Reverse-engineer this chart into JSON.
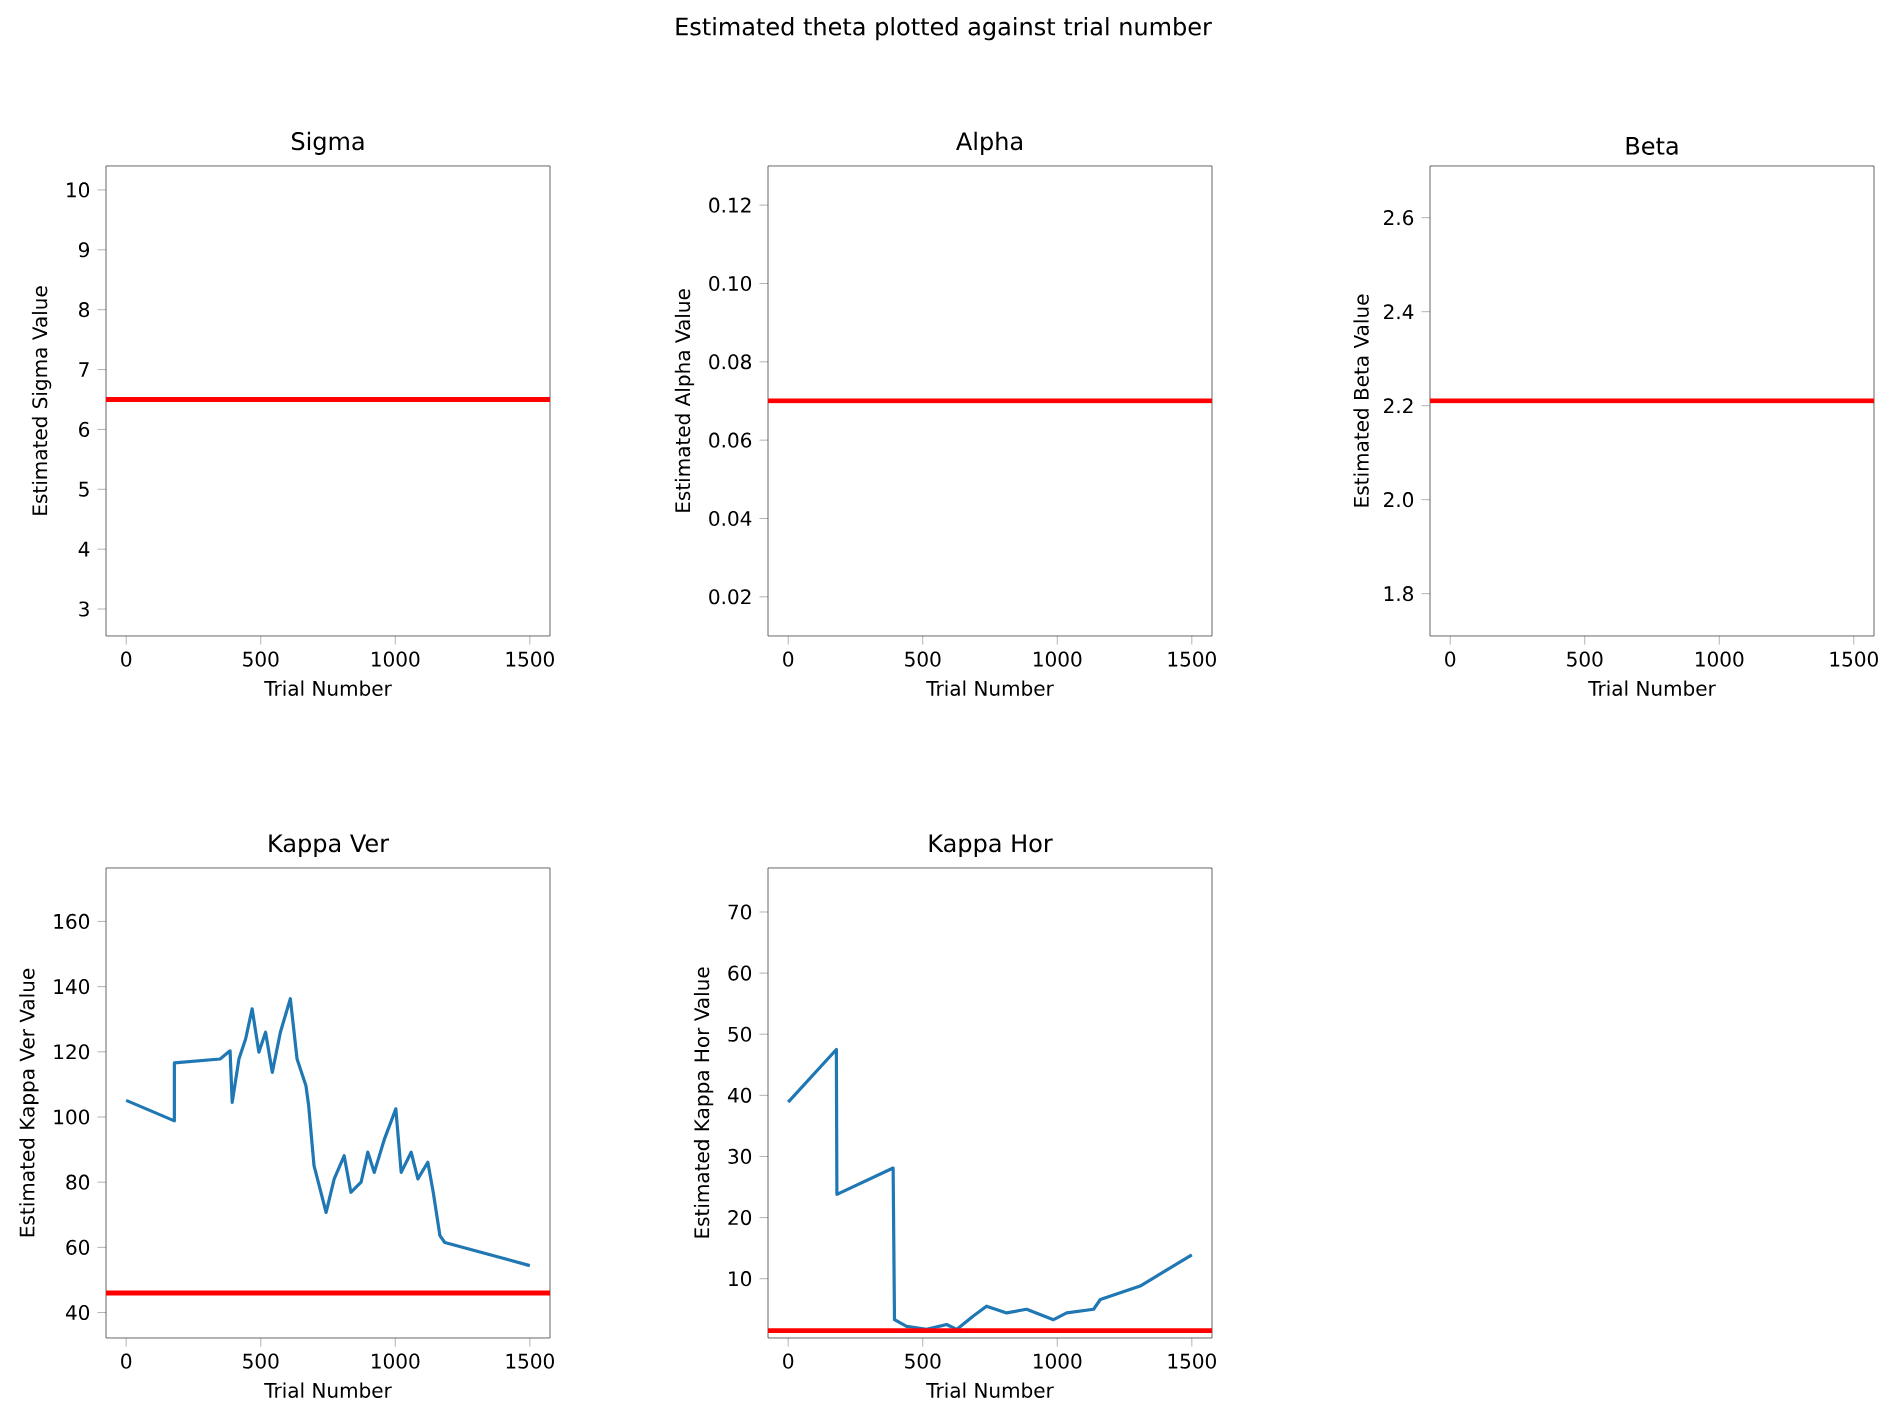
{
  "chart_data": [
    {
      "type": "other",
      "title": "Estimated theta plotted against trial number"
    },
    {
      "type": "line",
      "title": "Sigma",
      "xlabel": "Trial Number",
      "ylabel": "Estimated Sigma Value",
      "xlim": [
        -75,
        1575
      ],
      "ylim": [
        2.55,
        10.4
      ],
      "xticks": [
        0,
        500,
        1000,
        1500
      ],
      "yticks": [
        3,
        4,
        5,
        6,
        7,
        8,
        9,
        10
      ],
      "ref_lines": [
        {
          "axis": "y",
          "value": 6.5,
          "color": "#ff0000"
        }
      ]
    },
    {
      "type": "line",
      "title": "Alpha",
      "xlabel": "Trial Number",
      "ylabel": "Estimated Alpha Value",
      "xlim": [
        -75,
        1575
      ],
      "ylim": [
        0.01,
        0.13
      ],
      "xticks": [
        0,
        500,
        1000,
        1500
      ],
      "yticks": [
        {
          "value": 0.02,
          "label": "0.02"
        },
        {
          "value": 0.04,
          "label": "0.04"
        },
        {
          "value": 0.06,
          "label": "0.06"
        },
        {
          "value": 0.08,
          "label": "0.08"
        },
        {
          "value": 0.1,
          "label": "0.10"
        },
        {
          "value": 0.12,
          "label": "0.12"
        }
      ],
      "ref_lines": [
        {
          "axis": "y",
          "value": 0.07,
          "color": "#ff0000"
        }
      ]
    },
    {
      "type": "line",
      "title": "Beta",
      "xlabel": "Trial Number",
      "ylabel": "Estimated Beta Value",
      "xlim": [
        -75,
        1575
      ],
      "ylim": [
        1.71,
        2.71
      ],
      "xticks": [
        0,
        500,
        1000,
        1500
      ],
      "yticks": [
        1.8,
        {
          "value": 2.0,
          "label": "2.0"
        },
        2.2,
        2.4,
        2.6
      ],
      "ref_lines": [
        {
          "axis": "y",
          "value": 2.21,
          "color": "#ff0000"
        }
      ]
    },
    {
      "type": "line",
      "title": "Kappa Ver",
      "xlabel": "Trial Number",
      "ylabel": "Estimated Kappa Ver Value",
      "xlim": [
        -75,
        1575
      ],
      "ylim": [
        32.2,
        176.4
      ],
      "xticks": [
        0,
        500,
        1000,
        1500
      ],
      "yticks": [
        40,
        60,
        80,
        100,
        120,
        140,
        160
      ],
      "series": [
        {
          "color": "#1f77b4",
          "x": [
            0,
            179,
            179,
            349,
            386,
            394,
            419,
            444,
            468,
            493,
            518,
            543,
            573,
            610,
            635,
            668,
            678,
            698,
            743,
            773,
            810,
            835,
            873,
            898,
            922,
            960,
            1002,
            1022,
            1059,
            1084,
            1121,
            1141,
            1166,
            1184,
            1500
          ],
          "values": [
            105.1,
            98.8,
            116.6,
            117.8,
            120.3,
            104.5,
            117.8,
            124,
            133.2,
            119.9,
            126,
            113.7,
            126,
            136.3,
            117.8,
            109.6,
            103.5,
            85.1,
            70.7,
            81,
            88.1,
            76.9,
            80,
            89.2,
            83,
            93.3,
            102.5,
            83,
            89.2,
            81,
            86.1,
            76.9,
            63.6,
            61.5,
            54.4
          ]
        }
      ],
      "ref_lines": [
        {
          "axis": "y",
          "value": 46,
          "color": "#ff0000"
        }
      ]
    },
    {
      "type": "line",
      "title": "Kappa Hor",
      "xlabel": "Trial Number",
      "ylabel": "Estimated Kappa Hor Value",
      "xlim": [
        -75,
        1575
      ],
      "ylim": [
        0.3,
        77.2
      ],
      "xticks": [
        0,
        500,
        1000,
        1500
      ],
      "yticks": [
        10,
        20,
        30,
        40,
        50,
        60,
        70
      ],
      "series": [
        {
          "color": "#1f77b4",
          "x": [
            0,
            179,
            181,
            390,
            395,
            440,
            514,
            589,
            626,
            688,
            737,
            812,
            886,
            986,
            1035,
            1135,
            1160,
            1308,
            1500
          ],
          "values": [
            38.9,
            47.5,
            23.8,
            28.1,
            3.3,
            2.2,
            1.7,
            2.5,
            1.7,
            3.9,
            5.5,
            4.4,
            5.0,
            3.3,
            4.4,
            5.0,
            6.6,
            8.8,
            13.9
          ]
        }
      ],
      "ref_lines": [
        {
          "axis": "y",
          "value": 1.5,
          "color": "#ff0000"
        }
      ]
    }
  ]
}
